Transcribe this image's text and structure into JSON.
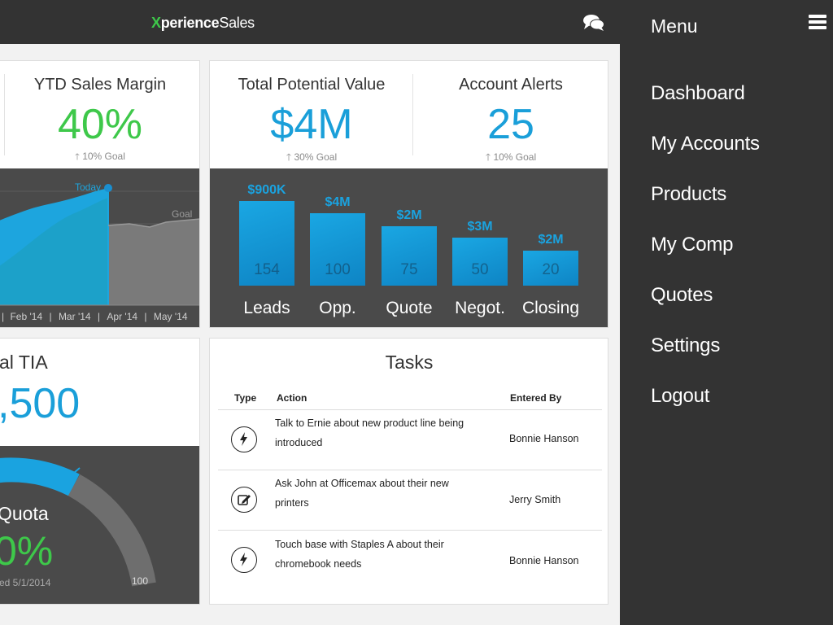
{
  "header": {
    "logo_x": "X",
    "logo_rest": "perience",
    "logo_sales": "Sales",
    "chat_icon": "chat-bubbles-icon"
  },
  "menu": {
    "title": "Menu",
    "toggle_icon": "hamburger-icon",
    "items": [
      {
        "label": "Dashboard"
      },
      {
        "label": "My Accounts"
      },
      {
        "label": "Products"
      },
      {
        "label": "My Comp"
      },
      {
        "label": "Quotes"
      },
      {
        "label": "Settings"
      },
      {
        "label": "Logout"
      }
    ]
  },
  "ytd": {
    "title": "YTD Sales Margin",
    "value": "40%",
    "goal": "10% Goal",
    "chart": {
      "today_label": "Today",
      "goal_label": "Goal",
      "x_labels": [
        "Feb '14",
        "Mar '14",
        "Apr '14",
        "May '14"
      ]
    }
  },
  "potential": {
    "title": "Total Potential Value",
    "value": "$4M",
    "goal": "30% Goal"
  },
  "alerts": {
    "title": "Account Alerts",
    "value": "25",
    "goal": "10% Goal"
  },
  "funnel": {
    "stages": [
      {
        "label": "Leads",
        "amount": "$900K",
        "count": "154"
      },
      {
        "label": "Opp.",
        "amount": "$4M",
        "count": "100"
      },
      {
        "label": "Quote",
        "amount": "$2M",
        "count": "75"
      },
      {
        "label": "Negot.",
        "amount": "$3M",
        "count": "50"
      },
      {
        "label": "Closing",
        "amount": "$2M",
        "count": "20"
      }
    ]
  },
  "tia": {
    "title_partial": "al TIA",
    "value_partial": ",500",
    "quota_label": "Quota",
    "quota_value_partial": "0%",
    "date_partial": "ed 5/1/2014",
    "gauge_max": "100"
  },
  "tasks": {
    "title": "Tasks",
    "columns": {
      "type": "Type",
      "action": "Action",
      "entered_by": "Entered By"
    },
    "rows": [
      {
        "icon": "lightning-icon",
        "action": "Talk to Ernie about new product line being introduced",
        "entered_by": "Bonnie Hanson"
      },
      {
        "icon": "edit-icon",
        "action": "Ask John at Officemax about their new printers",
        "entered_by": "Jerry Smith"
      },
      {
        "icon": "lightning-icon",
        "action": "Touch base with Staples A about their chromebook needs",
        "entered_by": "Bonnie Hanson"
      }
    ]
  },
  "colors": {
    "accent_green": "#3ec84a",
    "accent_blue": "#1a9fd9",
    "dark_bg": "#333333",
    "panel_dark": "#4a4a4a"
  }
}
